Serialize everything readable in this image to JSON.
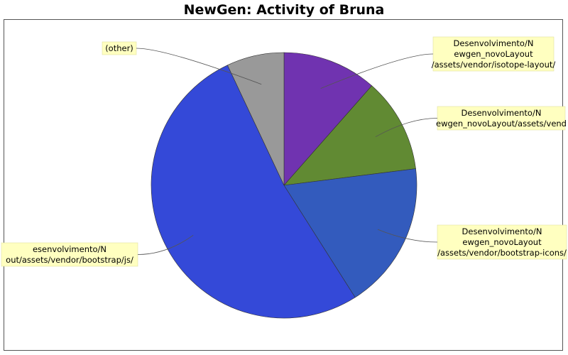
{
  "chart_data": {
    "type": "pie",
    "title": "NewGen: Activity of Bruna",
    "slices": [
      {
        "label": "Desenvolvimento/Newgen_novoLayout/assets/vendor/isotope-layout/",
        "label_lines": [
          "Desenvolvimento/N",
          "ewgen_novoLayout",
          "/assets/vendor/isotope-layout/"
        ],
        "value": 11.5,
        "color": "#7033b0"
      },
      {
        "label": "Desenvolvimento/Newgen_novoLayout/assets/vendor/...",
        "label_lines": [
          "Desenvolvimento/N",
          "ewgen_novoLayout/assets/vend"
        ],
        "value": 11.5,
        "color": "#618a33"
      },
      {
        "label": "Desenvolvimento/Newgen_novoLayout/assets/vendor/bootstrap-icons/",
        "label_lines": [
          "Desenvolvimento/N",
          "ewgen_novoLayout",
          "/assets/vendor/bootstrap-icons/"
        ],
        "value": 18.0,
        "color": "#335bbd"
      },
      {
        "label": "Desenvolvimento/Newgen_novoLayout/assets/vendor/bootstrap/js/",
        "label_lines": [
          "esenvolvimento/N",
          "out/assets/vendor/bootstrap/js/"
        ],
        "value": 52.0,
        "color": "#3449d8"
      },
      {
        "label": "(other)",
        "label_lines": [
          "(other)"
        ],
        "value": 7.0,
        "color": "#999999"
      }
    ],
    "start_angle_deg": 90,
    "direction": "clockwise",
    "legend": "none"
  }
}
